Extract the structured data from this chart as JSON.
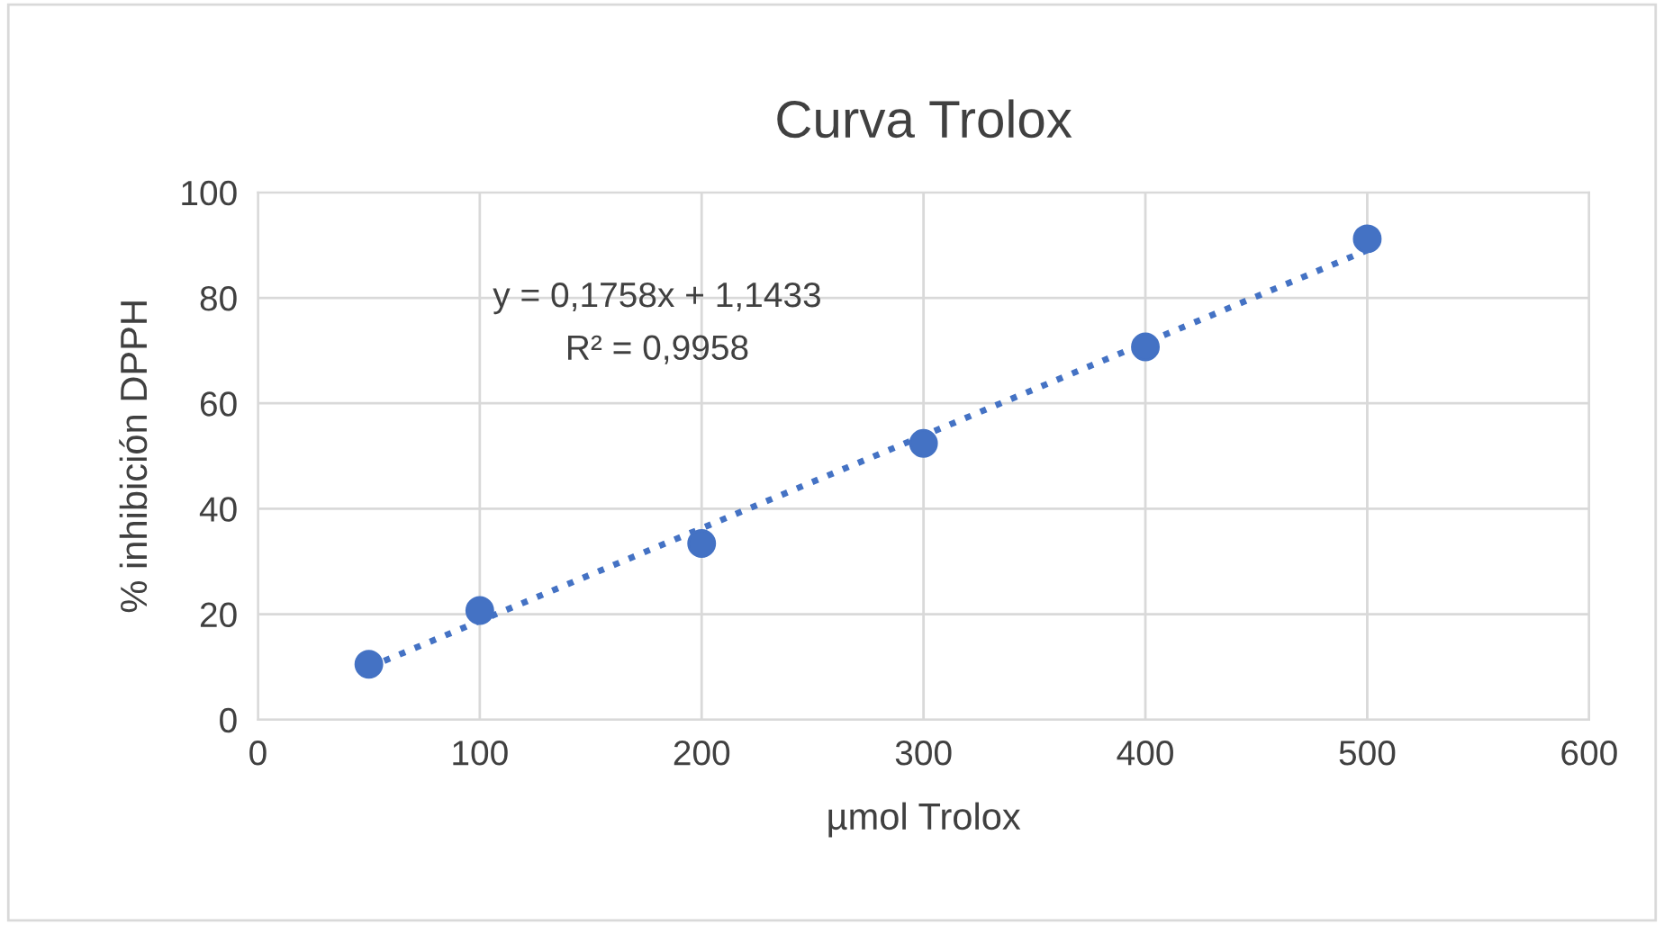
{
  "chart_data": {
    "type": "scatter",
    "title": "Curva Trolox",
    "xlabel": "µmol Trolox",
    "ylabel": "% inhibición DPPH",
    "xlim": [
      0,
      600
    ],
    "xticks": [
      0,
      100,
      200,
      300,
      400,
      500,
      600
    ],
    "ylim": [
      0,
      100
    ],
    "yticks": [
      0,
      20,
      40,
      60,
      80,
      100
    ],
    "grid": true,
    "annotations": [
      "y = 0,1758x + 1,1433",
      "R² = 0,9958"
    ],
    "series": [
      {
        "type": "scatter",
        "color": "#4472c4",
        "marker": "circle",
        "x": [
          50,
          100,
          200,
          300,
          400,
          500
        ],
        "values": [
          10.5,
          20.7,
          33.4,
          52.4,
          70.7,
          91.2
        ]
      },
      {
        "type": "line",
        "color": "#4472c4",
        "line_style": "dotted",
        "marker": "none",
        "x": [
          50,
          500
        ],
        "values": [
          9.93,
          89.04
        ]
      }
    ]
  }
}
